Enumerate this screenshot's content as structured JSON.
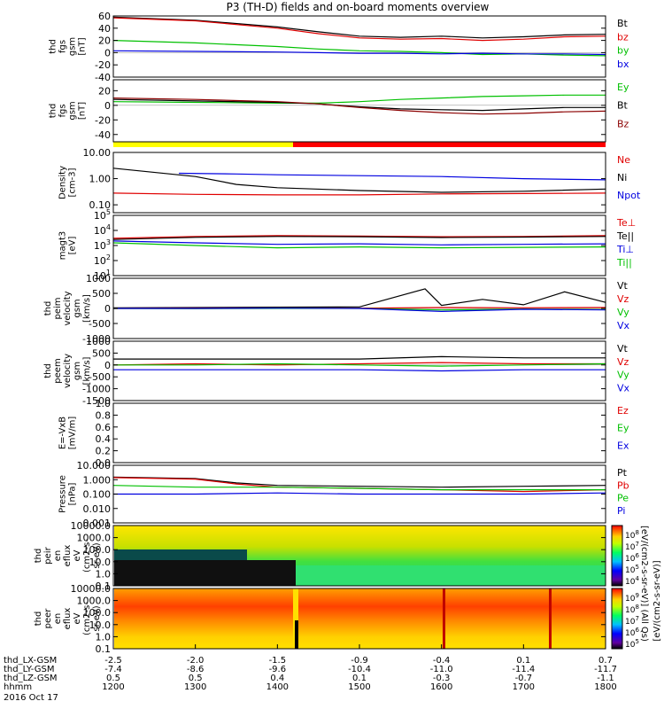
{
  "title": "P3 (TH-D) fields and on-board moments overview",
  "chart_data": {
    "type": "line",
    "title": "P3 (TH-D) fields and on-board moments overview",
    "x": {
      "label": "hhmm",
      "ticks": [
        "1200",
        "1300",
        "1400",
        "1500",
        "1600",
        "1700",
        "1800"
      ],
      "date_label": "2016 Oct 17",
      "ephemeris": [
        {
          "label": "thd_LX-GSM",
          "values": [
            "-2.5",
            "-2.0",
            "-1.5",
            "-0.9",
            "-0.4",
            "0.1",
            "0.7"
          ]
        },
        {
          "label": "thd_LY-GSM",
          "values": [
            "-7.4",
            "-8.6",
            "-9.6",
            "-10.4",
            "-11.0",
            "-11.4",
            "-11.7"
          ]
        },
        {
          "label": "thd_LZ-GSM",
          "values": [
            "0.5",
            "0.5",
            "0.4",
            "0.1",
            "-0.3",
            "-0.7",
            "-1.1"
          ]
        }
      ]
    },
    "panels": [
      {
        "ylabel": [
          "thd",
          "fgs",
          "gsm",
          "[nT]"
        ],
        "scale": "linear",
        "ylim": [
          -40,
          60
        ],
        "ticks": [
          "60",
          "40",
          "20",
          "0",
          "-20",
          "-40"
        ],
        "series": [
          {
            "name": "Bt",
            "color": "#000000",
            "x": [
              0,
              1,
              2,
              2.5,
              3,
              3.5,
              4,
              4.5,
              5,
              5.5,
              6
            ],
            "values": [
              58,
              53,
              42,
              34,
              27,
              25,
              27,
              24,
              26,
              29,
              30
            ]
          },
          {
            "name": "bz",
            "color": "#e00000",
            "x": [
              0,
              1,
              2,
              2.5,
              3,
              3.5,
              4,
              4.5,
              5,
              5.5,
              6
            ],
            "values": [
              57,
              52,
              40,
              31,
              24,
              22,
              23,
              20,
              22,
              26,
              27
            ]
          },
          {
            "name": "by",
            "color": "#00c000",
            "x": [
              0,
              1,
              2,
              2.5,
              3,
              3.5,
              4,
              4.5,
              5,
              5.5,
              6
            ],
            "values": [
              20,
              16,
              10,
              6,
              3,
              2,
              0,
              -3,
              -2,
              -4,
              -5
            ]
          },
          {
            "name": "bx",
            "color": "#0000e0",
            "x": [
              0,
              1,
              2,
              2.5,
              3,
              3.5,
              4,
              4.5,
              5,
              5.5,
              6
            ],
            "values": [
              3,
              2,
              1,
              0,
              -1,
              -1,
              -2,
              -1,
              -2,
              -2,
              -3
            ]
          }
        ]
      },
      {
        "ylabel": [
          "thd",
          "fgs",
          "gsm",
          "[nT]"
        ],
        "scale": "linear",
        "ylim": [
          -50,
          35
        ],
        "ticks": [
          "20",
          "0",
          "-20",
          "-40"
        ],
        "series": [
          {
            "name": "Ey",
            "color": "#00c000",
            "x": [
              0,
              1,
              2,
              2.5,
              3,
              3.5,
              4,
              4.5,
              5,
              5.5,
              6
            ],
            "values": [
              5,
              4,
              3,
              3,
              5,
              8,
              10,
              12,
              13,
              14,
              14
            ]
          },
          {
            "name": "Bt",
            "color": "#000000",
            "x": [
              0,
              1,
              2,
              2.5,
              3,
              3.5,
              4,
              4.5,
              5,
              5.5,
              6
            ],
            "values": [
              8,
              6,
              4,
              2,
              -2,
              -5,
              -6,
              -7,
              -5,
              -3,
              -3
            ]
          },
          {
            "name": "Bz",
            "color": "#8b0000",
            "x": [
              0,
              1,
              2,
              2.5,
              3,
              3.5,
              4,
              4.5,
              5,
              5.5,
              6
            ],
            "values": [
              10,
              8,
              5,
              2,
              -3,
              -7,
              -10,
              -12,
              -11,
              -9,
              -8
            ]
          }
        ]
      },
      {
        "ylabel": [
          "Density",
          "[cm-3]"
        ],
        "scale": "log",
        "ylim": [
          0.05,
          10
        ],
        "ticks": [
          "10.00",
          "1.00",
          "0.10"
        ],
        "series": [
          {
            "name": "Ne",
            "color": "#e00000",
            "x": [
              0,
              1,
              2,
              3,
              4,
              5,
              6
            ],
            "values": [
              0.28,
              0.25,
              0.24,
              0.24,
              0.26,
              0.27,
              0.28
            ]
          },
          {
            "name": "Ni",
            "color": "#000000",
            "x": [
              0,
              1,
              1.5,
              2,
              3,
              4,
              5,
              6
            ],
            "values": [
              2.5,
              1.2,
              0.6,
              0.45,
              0.35,
              0.3,
              0.33,
              0.4
            ]
          },
          {
            "name": "Npot",
            "color": "#0000e0",
            "x": [
              0.8,
              1.5,
              2,
              3,
              4,
              5,
              6
            ],
            "values": [
              1.6,
              1.5,
              1.4,
              1.3,
              1.2,
              1.0,
              0.9
            ]
          }
        ]
      },
      {
        "ylabel": [
          "magt3",
          "[eV]"
        ],
        "scale": "log",
        "ylim": [
          10,
          100000
        ],
        "ticks": [
          "10^5",
          "10^4",
          "10^3",
          "10^2",
          "10^1"
        ],
        "series": [
          {
            "name": "Te⊥",
            "color": "#e00000",
            "x": [
              0,
              1,
              2,
              3,
              4,
              5,
              6
            ],
            "values": [
              3000,
              4000,
              4500,
              4200,
              3800,
              4000,
              4500
            ]
          },
          {
            "name": "Te||",
            "color": "#000000",
            "x": [
              0,
              1,
              2,
              3,
              4,
              5,
              6
            ],
            "values": [
              2500,
              3500,
              4000,
              3800,
              3400,
              3600,
              4000
            ]
          },
          {
            "name": "Ti⊥",
            "color": "#0000e0",
            "x": [
              0,
              1,
              2,
              3,
              4,
              5,
              6
            ],
            "values": [
              2000,
              1500,
              1200,
              1300,
              1100,
              1200,
              1300
            ]
          },
          {
            "name": "Ti||",
            "color": "#00c000",
            "x": [
              0,
              1,
              2,
              3,
              4,
              5,
              6
            ],
            "values": [
              1500,
              1000,
              700,
              800,
              700,
              750,
              800
            ]
          }
        ]
      },
      {
        "ylabel": [
          "thd",
          "peim",
          "velocity",
          "gsm",
          "[km/s]"
        ],
        "scale": "linear",
        "ylim": [
          -1000,
          1000
        ],
        "ticks": [
          "1000",
          "500",
          "0",
          "-500",
          "-1000"
        ],
        "series": [
          {
            "name": "Vt",
            "color": "#000000",
            "x": [
              0,
              1,
              2,
              3,
              3.8,
              4,
              4.5,
              5,
              5.5,
              6
            ],
            "values": [
              20,
              30,
              40,
              50,
              650,
              100,
              300,
              120,
              550,
              200
            ]
          },
          {
            "name": "Vz",
            "color": "#e00000",
            "x": [
              0,
              1,
              2,
              3,
              4,
              5,
              6
            ],
            "values": [
              0,
              10,
              5,
              10,
              30,
              20,
              30
            ]
          },
          {
            "name": "Vy",
            "color": "#00c000",
            "x": [
              0,
              1,
              2,
              3,
              4,
              5,
              6
            ],
            "values": [
              0,
              -10,
              0,
              0,
              -50,
              -20,
              -40
            ]
          },
          {
            "name": "Vx",
            "color": "#0000e0",
            "x": [
              0,
              1,
              2,
              3,
              4,
              5,
              6
            ],
            "values": [
              0,
              0,
              10,
              0,
              -100,
              -30,
              -50
            ]
          }
        ]
      },
      {
        "ylabel": [
          "thd",
          "peem",
          "velocity",
          "gsm",
          "[km/s]"
        ],
        "scale": "linear",
        "ylim": [
          -1500,
          1000
        ],
        "ticks": [
          "1000",
          "500",
          "0",
          "-500",
          "-1000",
          "-1500"
        ],
        "series": [
          {
            "name": "Vt",
            "color": "#000000",
            "x": [
              0,
              1,
              2,
              3,
              4,
              5,
              6
            ],
            "values": [
              250,
              250,
              250,
              250,
              350,
              300,
              300
            ]
          },
          {
            "name": "Vz",
            "color": "#e00000",
            "x": [
              0,
              1,
              2,
              3,
              4,
              5,
              6
            ],
            "values": [
              0,
              50,
              0,
              50,
              100,
              50,
              50
            ]
          },
          {
            "name": "Vy",
            "color": "#00c000",
            "x": [
              0,
              1,
              2,
              3,
              4,
              5,
              6
            ],
            "values": [
              0,
              0,
              50,
              0,
              -50,
              0,
              50
            ]
          },
          {
            "name": "Vx",
            "color": "#0000e0",
            "x": [
              0,
              1,
              2,
              3,
              4,
              5,
              6
            ],
            "values": [
              -200,
              -200,
              -200,
              -200,
              -250,
              -200,
              -200
            ]
          }
        ]
      },
      {
        "ylabel": [
          "E=-VxB",
          "[mV/m]"
        ],
        "scale": "linear",
        "ylim": [
          0,
          1
        ],
        "ticks": [
          "1.0",
          "0.8",
          "0.6",
          "0.4",
          "0.2",
          "0.0"
        ],
        "series": [
          {
            "name": "Ez",
            "color": "#e00000",
            "x": [],
            "values": []
          },
          {
            "name": "Ey",
            "color": "#00c000",
            "x": [],
            "values": []
          },
          {
            "name": "Ex",
            "color": "#0000e0",
            "x": [],
            "values": []
          }
        ]
      },
      {
        "ylabel": [
          "Pressure",
          "[nPa]"
        ],
        "scale": "log",
        "ylim": [
          0.001,
          10
        ],
        "ticks": [
          "10.000",
          "1.000",
          "0.100",
          "0.010",
          "0.001"
        ],
        "series": [
          {
            "name": "Pt",
            "color": "#000000",
            "x": [
              0,
              1,
              1.5,
              2,
              3,
              4,
              5,
              6
            ],
            "values": [
              1.5,
              1.2,
              0.6,
              0.4,
              0.35,
              0.3,
              0.35,
              0.4
            ]
          },
          {
            "name": "Pb",
            "color": "#e00000",
            "x": [
              0,
              1,
              1.5,
              2,
              3,
              4,
              5,
              6
            ],
            "values": [
              1.4,
              1.1,
              0.5,
              0.3,
              0.25,
              0.2,
              0.15,
              0.2
            ]
          },
          {
            "name": "Pe",
            "color": "#00c000",
            "x": [
              0,
              1,
              2,
              3,
              4,
              5,
              6
            ],
            "values": [
              0.4,
              0.3,
              0.3,
              0.25,
              0.2,
              0.2,
              0.2
            ]
          },
          {
            "name": "Pi",
            "color": "#0000e0",
            "x": [
              0,
              1,
              2,
              3,
              4,
              5,
              6
            ],
            "values": [
              0.1,
              0.1,
              0.12,
              0.1,
              0.1,
              0.1,
              0.12
            ]
          }
        ]
      },
      {
        "type": "heatmap",
        "ylabel": [
          "thd",
          "peir",
          "en",
          "eflux",
          "eV",
          "(cm2-s-",
          "sr-eV)"
        ],
        "scale": "log",
        "ylim": [
          0.1,
          10000
        ],
        "ticks": [
          "10000.0",
          "1000.0",
          "100.0",
          "10.0",
          "1.0",
          "0.1"
        ],
        "colorbar": {
          "label": "[eV/(cm2-s-sr-eV)] (All Qs)",
          "ticks": [
            "10^8",
            "10^7",
            "10^6",
            "10^5",
            "10^4"
          ]
        }
      },
      {
        "type": "heatmap",
        "ylabel": [
          "thd",
          "peer",
          "en",
          "eflux",
          "eV",
          "(cm2-s-",
          "sr-eV)"
        ],
        "scale": "log",
        "ylim": [
          0.1,
          10000
        ],
        "ticks": [
          "10000.0",
          "1000.0",
          "100.0",
          "10.0",
          "1.0",
          "0.1"
        ],
        "colorbar": {
          "label": "[eV/(cm2-s-sr-eV)]",
          "ticks": [
            "10^9",
            "10^8",
            "10^7",
            "10^6",
            "10^5"
          ]
        }
      }
    ]
  }
}
